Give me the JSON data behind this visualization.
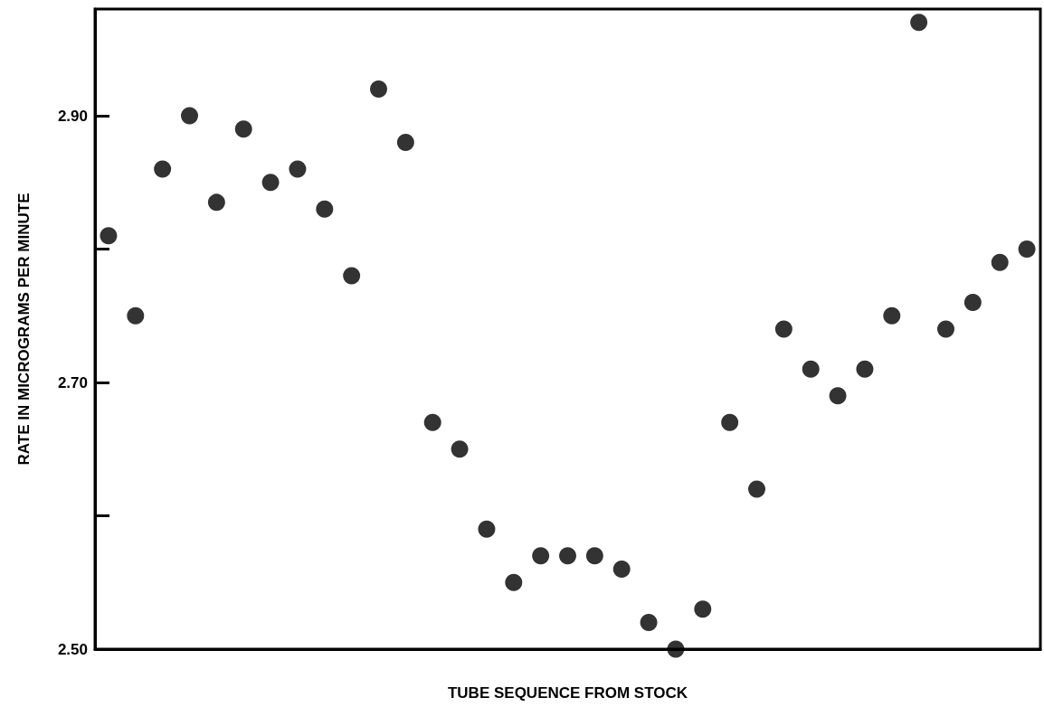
{
  "chart_data": {
    "type": "scatter",
    "xlabel": "TUBE SEQUENCE FROM STOCK",
    "ylabel": "RATE IN MICROGRAMS PER MINUTE",
    "categories": [
      null,
      null,
      null,
      null,
      null,
      null,
      null,
      null,
      null,
      null,
      null,
      null,
      null,
      null,
      null,
      null,
      null,
      null,
      null,
      null,
      null,
      null,
      null,
      null,
      null,
      null,
      null,
      null,
      null,
      null,
      null,
      null,
      null,
      null,
      null
    ],
    "series": [
      {
        "color": "#000000",
        "values": [
          2.81,
          2.75,
          2.86,
          2.9,
          2.835,
          2.89,
          2.85,
          2.86,
          2.83,
          2.78,
          2.92,
          2.88,
          2.67,
          2.65,
          2.59,
          2.55,
          2.57,
          2.57,
          2.57,
          2.56,
          2.52,
          2.5,
          2.53,
          2.67,
          2.62,
          2.74,
          2.71,
          2.69,
          2.71,
          2.75,
          2.97,
          2.74,
          2.76,
          2.79,
          2.8
        ]
      }
    ],
    "ylim": [
      2.5,
      2.98
    ],
    "yticks": [
      {
        "value": 2.5,
        "label": "2.50"
      },
      {
        "value": 2.6,
        "label": null
      },
      {
        "value": 2.7,
        "label": "2.70"
      },
      {
        "value": 2.8,
        "label": null
      },
      {
        "value": 2.9,
        "label": "2.90"
      }
    ],
    "tick_labels": "y",
    "marker": "circle",
    "grid": false
  }
}
